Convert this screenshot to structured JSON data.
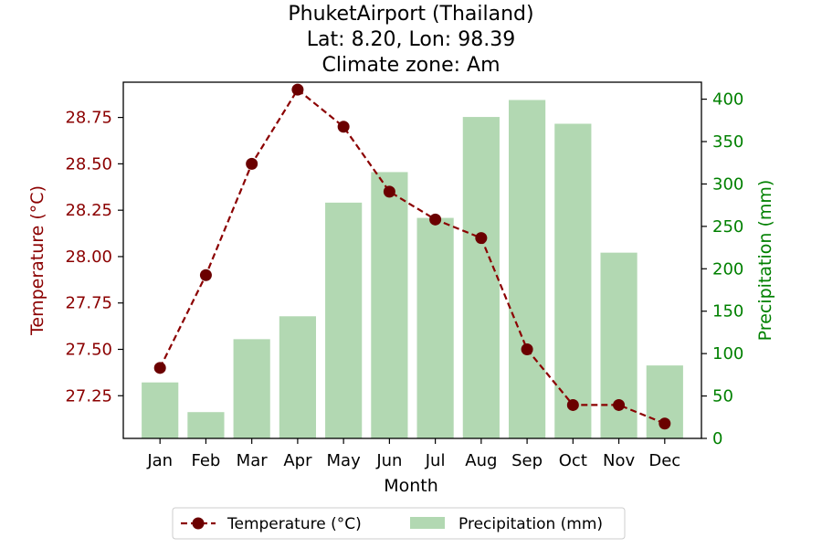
{
  "chart_data": {
    "type": "bar+line",
    "title": [
      "PhuketAirport (Thailand)",
      "Lat: 8.20, Lon: 98.39",
      "Climate zone: Am"
    ],
    "xlabel": "Month",
    "categories": [
      "Jan",
      "Feb",
      "Mar",
      "Apr",
      "May",
      "Jun",
      "Jul",
      "Aug",
      "Sep",
      "Oct",
      "Nov",
      "Dec"
    ],
    "y_left": {
      "label": "Temperature (°C)",
      "ticks": [
        "27.25",
        "27.50",
        "27.75",
        "28.00",
        "28.25",
        "28.50",
        "28.75"
      ],
      "tick_values": [
        27.25,
        27.5,
        27.75,
        28.0,
        28.25,
        28.5,
        28.75
      ],
      "range": [
        27.02,
        28.94
      ],
      "color": "#8b0000"
    },
    "y_right": {
      "label": "Precipitation (mm)",
      "ticks": [
        "0",
        "50",
        "100",
        "150",
        "200",
        "250",
        "300",
        "350",
        "400"
      ],
      "tick_values": [
        0,
        50,
        100,
        150,
        200,
        250,
        300,
        350,
        400
      ],
      "range": [
        0,
        420
      ],
      "color": "#008000"
    },
    "series": [
      {
        "name": "Temperature (°C)",
        "type": "line",
        "axis": "left",
        "color": "#8b0000",
        "marker_color": "#6b0000",
        "style": "dashed",
        "values": [
          27.4,
          27.9,
          28.5,
          28.9,
          28.7,
          28.35,
          28.2,
          28.1,
          27.5,
          27.2,
          27.2,
          27.1
        ]
      },
      {
        "name": "Precipitation (mm)",
        "type": "bar",
        "axis": "right",
        "color": "#b2d8b2",
        "values": [
          66,
          31,
          117,
          144,
          278,
          314,
          260,
          379,
          399,
          371,
          219,
          86
        ]
      }
    ],
    "legend": {
      "placement": "bottom-center",
      "items": [
        "Temperature (°C)",
        "Precipitation (mm)"
      ]
    }
  }
}
